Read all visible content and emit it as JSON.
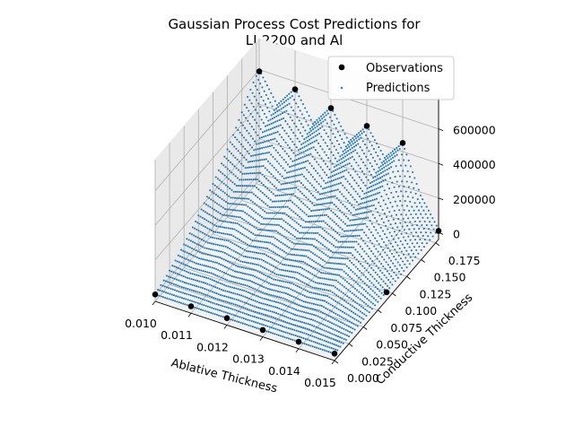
{
  "chart_data": {
    "type": "scatter",
    "projection": "3d",
    "title_lines": [
      "Gaussian Process Cost Predictions for",
      "LI-2200 and Al"
    ],
    "xlabel": "Ablative Thickness",
    "ylabel": "Conductive Thickness",
    "zlabel": "",
    "xlim": [
      0.01,
      0.015
    ],
    "ylim": [
      0.0,
      0.18
    ],
    "zlim": [
      -40000,
      780000
    ],
    "x_ticks": [
      "0.010",
      "0.011",
      "0.012",
      "0.013",
      "0.014",
      "0.015"
    ],
    "y_ticks": [
      "0.000",
      "0.025",
      "0.050",
      "0.075",
      "0.100",
      "0.125",
      "0.150",
      "0.175"
    ],
    "z_ticks": [
      "0",
      "200000",
      "400000",
      "600000"
    ],
    "grid": true,
    "legend_position": "top-right",
    "series": [
      {
        "name": "Observations",
        "marker": "filled-circle",
        "color": "#000000",
        "points": [
          [
            0.01,
            0.0,
            0
          ],
          [
            0.011,
            0.0,
            0
          ],
          [
            0.012,
            0.0,
            0
          ],
          [
            0.013,
            0.0,
            0
          ],
          [
            0.014,
            0.0,
            0
          ],
          [
            0.015,
            0.0,
            0
          ],
          [
            0.01,
            0.18,
            590000
          ],
          [
            0.011,
            0.18,
            555000
          ],
          [
            0.012,
            0.18,
            515000
          ],
          [
            0.013,
            0.18,
            480000
          ],
          [
            0.014,
            0.18,
            450000
          ],
          [
            0.015,
            0.18,
            10000
          ],
          [
            0.015,
            0.09,
            5000
          ]
        ]
      },
      {
        "name": "Predictions",
        "marker": "point",
        "color": "#1f77b4",
        "grid_x": [
          0.01,
          0.0105,
          0.011,
          0.0115,
          0.012,
          0.0125,
          0.013,
          0.0135,
          0.014,
          0.0145,
          0.015
        ],
        "grid_y": [
          0.0,
          0.01,
          0.02,
          0.03,
          0.04,
          0.05,
          0.06,
          0.07,
          0.08,
          0.09,
          0.1,
          0.11,
          0.12,
          0.13,
          0.14,
          0.15,
          0.16,
          0.17,
          0.18
        ],
        "z_grid": [
          [
            0,
            15000,
            30000,
            50000,
            70000,
            95000,
            120000,
            150000,
            180000,
            215000,
            250000,
            290000,
            330000,
            375000,
            420000,
            470000,
            520000,
            565000,
            600000
          ],
          [
            0,
            12000,
            25000,
            40000,
            58000,
            78000,
            100000,
            125000,
            150000,
            178000,
            205000,
            235000,
            265000,
            295000,
            325000,
            355000,
            385000,
            410000,
            430000
          ],
          [
            0,
            14000,
            28000,
            45000,
            65000,
            88000,
            112000,
            140000,
            168000,
            200000,
            232000,
            268000,
            305000,
            345000,
            385000,
            425000,
            465000,
            510000,
            560000
          ],
          [
            0,
            11000,
            22000,
            36000,
            52000,
            70000,
            90000,
            112000,
            135000,
            160000,
            185000,
            212000,
            240000,
            268000,
            296000,
            322000,
            348000,
            370000,
            390000
          ],
          [
            0,
            13000,
            26000,
            42000,
            60000,
            82000,
            105000,
            130000,
            158000,
            188000,
            218000,
            252000,
            288000,
            326000,
            365000,
            405000,
            445000,
            485000,
            520000
          ],
          [
            0,
            10000,
            20000,
            33000,
            48000,
            64000,
            82000,
            102000,
            123000,
            146000,
            170000,
            195000,
            220000,
            245000,
            270000,
            295000,
            318000,
            338000,
            355000
          ],
          [
            0,
            12000,
            24000,
            39000,
            56000,
            76000,
            98000,
            122000,
            148000,
            176000,
            205000,
            237000,
            270000,
            306000,
            343000,
            380000,
            418000,
            450000,
            480000
          ],
          [
            0,
            9000,
            18000,
            30000,
            43000,
            58000,
            75000,
            93000,
            112000,
            133000,
            155000,
            178000,
            201000,
            224000,
            247000,
            270000,
            292000,
            312000,
            330000
          ],
          [
            0,
            11000,
            22000,
            36000,
            52000,
            70000,
            90000,
            113000,
            137000,
            163000,
            190000,
            220000,
            251000,
            284000,
            318000,
            353000,
            388000,
            420000,
            450000
          ],
          [
            0,
            6000,
            12000,
            20000,
            28000,
            38000,
            48000,
            60000,
            72000,
            85000,
            98000,
            112000,
            126000,
            140000,
            152000,
            162000,
            170000,
            176000,
            180000
          ],
          [
            0,
            1000,
            2000,
            3000,
            4000,
            5000,
            6000,
            7000,
            8000,
            9000,
            10000,
            11000,
            12000,
            13000,
            14000,
            15000,
            16000,
            17000,
            18000
          ]
        ]
      }
    ]
  }
}
